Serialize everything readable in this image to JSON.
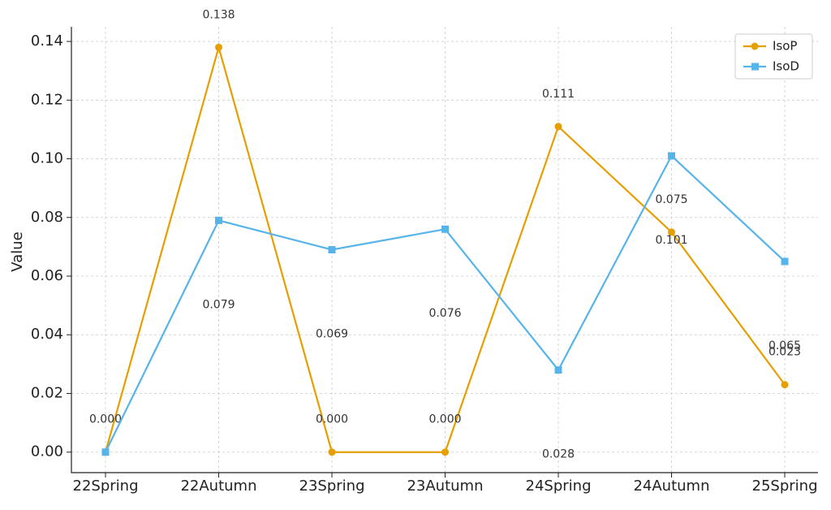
{
  "chart_data": {
    "type": "line",
    "y_label": "Value",
    "categories": [
      "22Spring",
      "22Autumn",
      "23Spring",
      "23Autumn",
      "24Spring",
      "24Autumn",
      "25Spring"
    ],
    "series": [
      {
        "name": "IsoP",
        "color": "#e69f00",
        "marker": "circle",
        "values": [
          0,
          0.138,
          0,
          0,
          0.111,
          0.075,
          0.023
        ],
        "value_labels": [
          "0.000",
          "0.138",
          "0.000",
          "0.000",
          "0.111",
          "0.075",
          "0.023"
        ]
      },
      {
        "name": "IsoD",
        "color": "#56b4e9",
        "marker": "square",
        "values": [
          0,
          0.079,
          0.069,
          0.076,
          0.028,
          0.101,
          0.065
        ],
        "value_labels": [
          null,
          "0.079",
          "0.069",
          "0.076",
          "0.028",
          "0.101",
          "0.065"
        ]
      }
    ],
    "ylim": [
      -0.007,
      0.145
    ],
    "yticks": [
      {
        "value": 0,
        "label": "0.00"
      },
      {
        "value": 0.02,
        "label": "0.02"
      },
      {
        "value": 0.04,
        "label": "0.04"
      },
      {
        "value": 0.06,
        "label": "0.06"
      },
      {
        "value": 0.08,
        "label": "0.08"
      },
      {
        "value": 0.1,
        "label": "0.10"
      },
      {
        "value": 0.12,
        "label": "0.12"
      },
      {
        "value": 0.14,
        "label": "0.14"
      }
    ],
    "grid": true,
    "legend": "upper right"
  }
}
